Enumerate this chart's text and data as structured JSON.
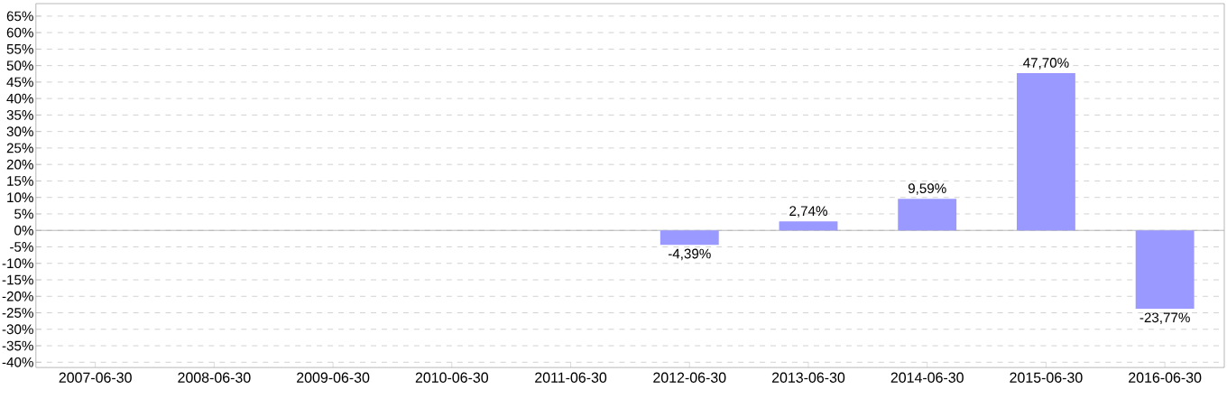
{
  "chart_data": {
    "type": "bar",
    "categories": [
      "2007-06-30",
      "2008-06-30",
      "2009-06-30",
      "2010-06-30",
      "2011-06-30",
      "2012-06-30",
      "2013-06-30",
      "2014-06-30",
      "2015-06-30",
      "2016-06-30"
    ],
    "values": [
      null,
      null,
      null,
      null,
      null,
      -4.39,
      2.74,
      9.59,
      47.7,
      -23.77
    ],
    "value_labels": [
      null,
      null,
      null,
      null,
      null,
      "-4,39%",
      "2,74%",
      "9,59%",
      "47,70%",
      "-23,77%"
    ],
    "color": "#9999ff",
    "ylim": [
      -41.6,
      68.8
    ],
    "yticks": [
      {
        "value": -40,
        "label": "-40%"
      },
      {
        "value": -35,
        "label": "-35%"
      },
      {
        "value": -30,
        "label": "-30%"
      },
      {
        "value": -25,
        "label": "-25%"
      },
      {
        "value": -20,
        "label": "-20%"
      },
      {
        "value": -15,
        "label": "-15%"
      },
      {
        "value": -10,
        "label": "-10%"
      },
      {
        "value": -5,
        "label": "-5%"
      },
      {
        "value": 0,
        "label": "0%"
      },
      {
        "value": 5,
        "label": "5%"
      },
      {
        "value": 10,
        "label": "10%"
      },
      {
        "value": 15,
        "label": "15%"
      },
      {
        "value": 20,
        "label": "20%"
      },
      {
        "value": 25,
        "label": "25%"
      },
      {
        "value": 30,
        "label": "30%"
      },
      {
        "value": 35,
        "label": "35%"
      },
      {
        "value": 40,
        "label": "40%"
      },
      {
        "value": 45,
        "label": "45%"
      },
      {
        "value": 50,
        "label": "50%"
      },
      {
        "value": 55,
        "label": "55%"
      },
      {
        "value": 60,
        "label": "60%"
      },
      {
        "value": 65,
        "label": "65%"
      }
    ],
    "grid": "y"
  }
}
